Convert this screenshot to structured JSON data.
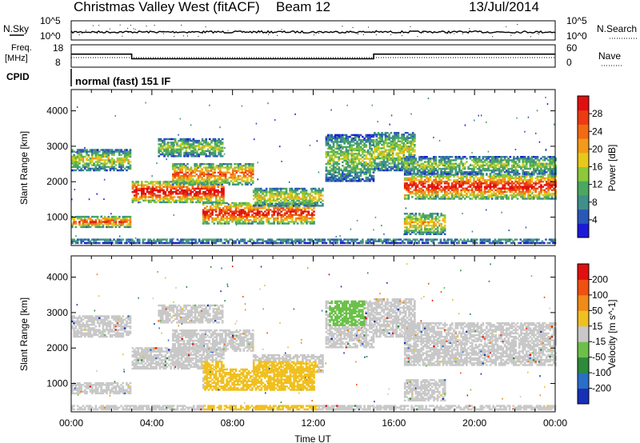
{
  "header": {
    "station": "Christmas Valley West (fitACF)",
    "beam": "Beam 12",
    "date": "13/Jul/2014"
  },
  "status_panels": {
    "nsky": {
      "label": "N.Sky",
      "ticks": [
        "10^5",
        "10^0"
      ],
      "right_ticks": [
        "10^5",
        "10^0"
      ],
      "right_label": "N.Search"
    },
    "freq": {
      "label_line1": "Freq.",
      "label_line2": "[MHz]",
      "ticks": [
        "18",
        "8"
      ],
      "right_ticks": [
        "60",
        "0"
      ],
      "right_label": "Nave",
      "series": [
        {
          "from": 0,
          "to": 3.0,
          "value": 14.0
        },
        {
          "from": 3.0,
          "to": 15.0,
          "value": 11.5
        },
        {
          "from": 15.0,
          "to": 24.0,
          "value": 14.0
        }
      ]
    },
    "cpid": {
      "label": "CPID",
      "text": "normal (fast) 151 IF"
    }
  },
  "chart_data": [
    {
      "type": "heatmap",
      "name": "power",
      "ylabel": "Slant Range [km]",
      "yticks": [
        "1000",
        "2000",
        "3000",
        "4000"
      ],
      "ylim": [
        200,
        4600
      ],
      "xlim": [
        0,
        24
      ],
      "colorbar": {
        "title": "Power [dB]",
        "ticks": [
          "4",
          "8",
          "12",
          "16",
          "20",
          "24",
          "28"
        ],
        "colors": [
          "#1a1ad8",
          "#2a58b8",
          "#3f8f8a",
          "#4aa860",
          "#8cc83a",
          "#e8c81a",
          "#f39a1a",
          "#f26a12",
          "#ec3a12",
          "#e01010"
        ]
      }
    },
    {
      "type": "heatmap",
      "name": "velocity",
      "xlabel": "Time UT",
      "ylabel": "Slant Range [km]",
      "yticks": [
        "1000",
        "2000",
        "3000",
        "4000"
      ],
      "xticks": [
        "00:00",
        "04:00",
        "08:00",
        "12:00",
        "16:00",
        "20:00",
        "00:00"
      ],
      "ylim": [
        200,
        4600
      ],
      "xlim": [
        0,
        24
      ],
      "colorbar": {
        "title": "Velocity [m s^-1]",
        "ticks": [
          "200",
          "100",
          "50",
          "15",
          "-15",
          "-50",
          "-100",
          "-200"
        ],
        "colors": [
          "#1830b8",
          "#2a6ec8",
          "#2c8a3a",
          "#6cc04a",
          "#c8c8c8",
          "#f0c020",
          "#f08a18",
          "#f05010",
          "#e01010"
        ]
      }
    }
  ]
}
